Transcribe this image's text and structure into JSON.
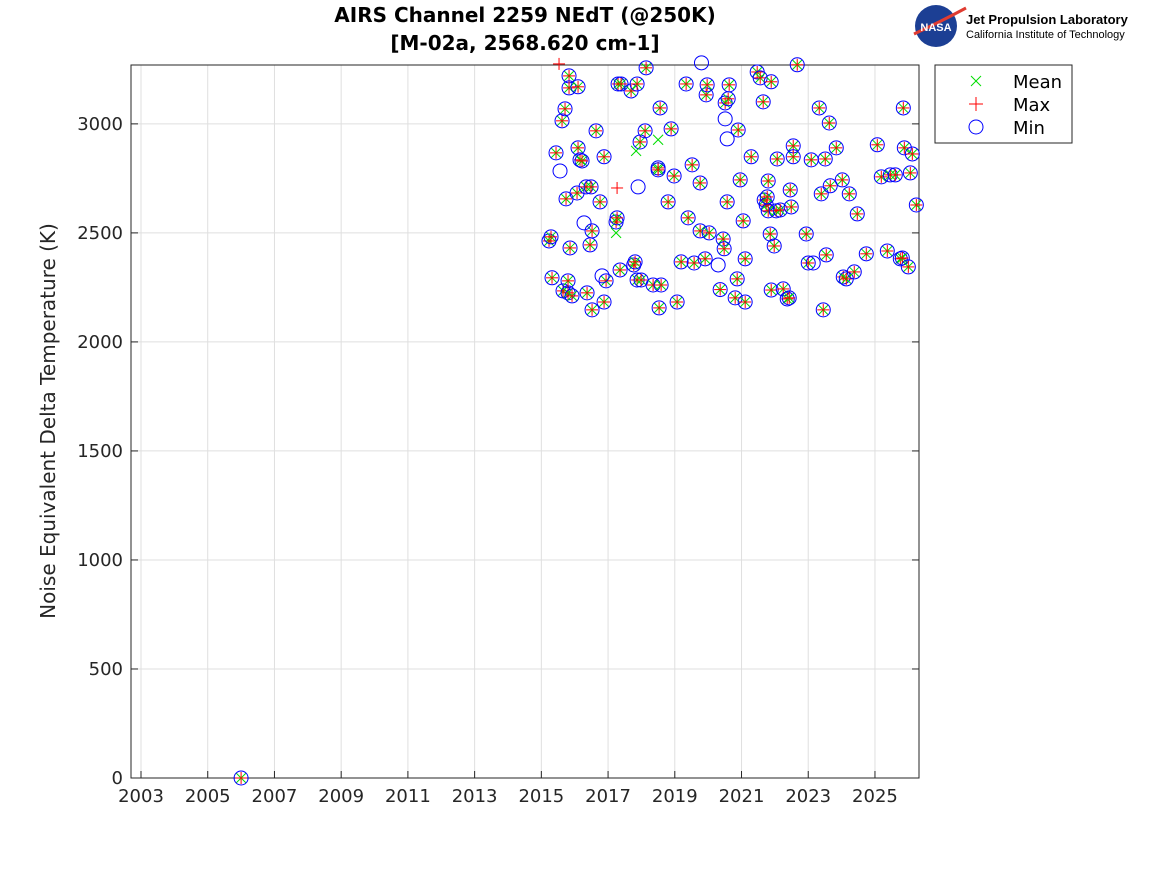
{
  "chart_data": {
    "type": "scatter",
    "title": [
      "AIRS Channel 2259 NEdT (@250K)",
      "[M-02a, 2568.620 cm-1]"
    ],
    "xlabel": "",
    "ylabel": "Noise Equivalent Delta Temperature (K)",
    "xlim": [
      2002.7,
      2026.32
    ],
    "ylim": [
      0,
      3270
    ],
    "xticks": [
      2003,
      2005,
      2007,
      2009,
      2011,
      2013,
      2015,
      2017,
      2019,
      2021,
      2023,
      2025
    ],
    "yticks": [
      0,
      500,
      1000,
      1500,
      2000,
      2500,
      3000
    ],
    "grid": true,
    "legend": {
      "placement": "outside-top-right",
      "entries": [
        "Mean",
        "Max",
        "Min"
      ]
    },
    "colors": {
      "Mean": "#00dd00",
      "Max": "#ff0000",
      "Min": "#0000ff"
    },
    "note": "shared_points have Mean = Max = Min",
    "shared_points": [
      [
        2006.0,
        0
      ],
      [
        2015.23,
        2463
      ],
      [
        2015.29,
        2482
      ],
      [
        2015.32,
        2294
      ],
      [
        2015.44,
        2867
      ],
      [
        2015.62,
        3014
      ],
      [
        2015.65,
        2234
      ],
      [
        2015.71,
        3069
      ],
      [
        2015.74,
        2656
      ],
      [
        2015.8,
        2225
      ],
      [
        2015.8,
        2280
      ],
      [
        2015.83,
        3220
      ],
      [
        2015.83,
        3165
      ],
      [
        2015.86,
        2431
      ],
      [
        2015.92,
        2211
      ],
      [
        2016.07,
        2683
      ],
      [
        2016.1,
        2890
      ],
      [
        2016.1,
        3170
      ],
      [
        2016.16,
        2835
      ],
      [
        2016.22,
        2830
      ],
      [
        2016.34,
        2711
      ],
      [
        2016.37,
        2225
      ],
      [
        2016.46,
        2445
      ],
      [
        2016.49,
        2711
      ],
      [
        2016.52,
        2509
      ],
      [
        2016.52,
        2147
      ],
      [
        2016.64,
        2968
      ],
      [
        2016.76,
        2642
      ],
      [
        2016.88,
        2849
      ],
      [
        2016.88,
        2183
      ],
      [
        2016.94,
        2280
      ],
      [
        2017.24,
        2550
      ],
      [
        2017.27,
        2569
      ],
      [
        2017.3,
        3183
      ],
      [
        2017.36,
        2330
      ],
      [
        2017.39,
        3183
      ],
      [
        2017.69,
        3151
      ],
      [
        2017.77,
        2353
      ],
      [
        2017.81,
        2367
      ],
      [
        2017.87,
        3183
      ],
      [
        2017.87,
        2284
      ],
      [
        2017.96,
        2917
      ],
      [
        2017.99,
        2284
      ],
      [
        2018.11,
        2968
      ],
      [
        2018.14,
        3257
      ],
      [
        2018.35,
        2261
      ],
      [
        2018.5,
        2798
      ],
      [
        2018.5,
        2789
      ],
      [
        2018.53,
        2156
      ],
      [
        2018.56,
        3073
      ],
      [
        2018.59,
        2261
      ],
      [
        2018.8,
        2642
      ],
      [
        2018.89,
        2977
      ],
      [
        2018.98,
        2761
      ],
      [
        2019.07,
        2183
      ],
      [
        2019.19,
        2367
      ],
      [
        2019.34,
        3183
      ],
      [
        2019.4,
        2569
      ],
      [
        2019.52,
        2812
      ],
      [
        2019.58,
        2362
      ],
      [
        2019.76,
        2729
      ],
      [
        2019.76,
        2509
      ],
      [
        2019.91,
        2381
      ],
      [
        2019.94,
        3133
      ],
      [
        2019.97,
        3179
      ],
      [
        2020.03,
        2500
      ],
      [
        2020.36,
        2240
      ],
      [
        2020.45,
        2472
      ],
      [
        2020.48,
        2427
      ],
      [
        2020.51,
        3096
      ],
      [
        2020.57,
        2642
      ],
      [
        2020.6,
        3115
      ],
      [
        2020.63,
        3179
      ],
      [
        2020.81,
        2202
      ],
      [
        2020.87,
        2289
      ],
      [
        2020.9,
        2972
      ],
      [
        2020.96,
        2743
      ],
      [
        2021.05,
        2555
      ],
      [
        2021.11,
        2183
      ],
      [
        2021.11,
        2381
      ],
      [
        2021.29,
        2849
      ],
      [
        2021.47,
        3238
      ],
      [
        2021.56,
        3211
      ],
      [
        2021.65,
        3101
      ],
      [
        2021.68,
        2651
      ],
      [
        2021.74,
        2628
      ],
      [
        2021.77,
        2665
      ],
      [
        2021.8,
        2601
      ],
      [
        2021.8,
        2738
      ],
      [
        2021.86,
        2495
      ],
      [
        2021.89,
        2238
      ],
      [
        2021.89,
        3193
      ],
      [
        2021.98,
        2440
      ],
      [
        2022.04,
        2601
      ],
      [
        2022.07,
        2839
      ],
      [
        2022.16,
        2605
      ],
      [
        2022.25,
        2243
      ],
      [
        2022.37,
        2197
      ],
      [
        2022.43,
        2202
      ],
      [
        2022.46,
        2697
      ],
      [
        2022.49,
        2619
      ],
      [
        2022.55,
        2899
      ],
      [
        2022.55,
        2849
      ],
      [
        2022.67,
        3271
      ],
      [
        2022.94,
        2495
      ],
      [
        2023.0,
        2362
      ],
      [
        2023.09,
        2835
      ],
      [
        2023.33,
        3073
      ],
      [
        2023.39,
        2679
      ],
      [
        2023.45,
        2147
      ],
      [
        2023.51,
        2839
      ],
      [
        2023.54,
        2399
      ],
      [
        2023.63,
        3004
      ],
      [
        2023.66,
        2716
      ],
      [
        2023.84,
        2890
      ],
      [
        2024.02,
        2743
      ],
      [
        2024.05,
        2298
      ],
      [
        2024.14,
        2289
      ],
      [
        2024.23,
        2679
      ],
      [
        2024.38,
        2321
      ],
      [
        2024.47,
        2587
      ],
      [
        2024.74,
        2404
      ],
      [
        2025.07,
        2904
      ],
      [
        2025.19,
        2757
      ],
      [
        2025.37,
        2417
      ],
      [
        2025.46,
        2766
      ],
      [
        2025.61,
        2766
      ],
      [
        2025.76,
        2381
      ],
      [
        2025.82,
        2385
      ],
      [
        2025.85,
        3073
      ],
      [
        2025.88,
        2890
      ],
      [
        2026.0,
        2344
      ],
      [
        2026.06,
        2775
      ],
      [
        2026.12,
        2862
      ],
      [
        2026.24,
        2628
      ]
    ],
    "mean_only": [
      [
        2017.24,
        2500
      ],
      [
        2017.84,
        2876
      ],
      [
        2018.5,
        2927
      ]
    ],
    "max_only": [
      [
        2015.53,
        3275
      ],
      [
        2017.27,
        2706
      ]
    ],
    "min_only": [
      [
        2015.56,
        2784
      ],
      [
        2016.28,
        2546
      ],
      [
        2016.82,
        2303
      ],
      [
        2017.9,
        2711
      ],
      [
        2019.8,
        3280
      ],
      [
        2020.51,
        3023
      ],
      [
        2020.57,
        2931
      ],
      [
        2020.3,
        2353
      ],
      [
        2023.15,
        2362
      ]
    ]
  },
  "logo": {
    "line1": "Jet Propulsion Laboratory",
    "line2": "California Institute of Technology",
    "badge": "NASA"
  }
}
